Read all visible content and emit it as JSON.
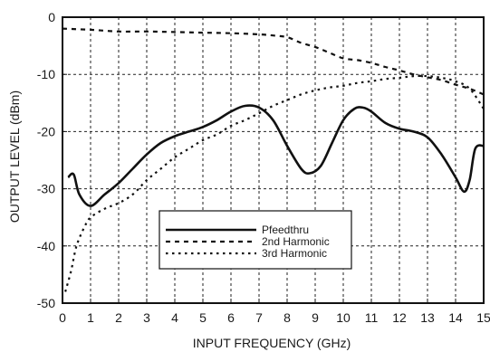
{
  "chart_data": {
    "type": "line",
    "title": "",
    "xlabel": "INPUT  FREQUENCY (GHz)",
    "ylabel": "OUTPUT LEVEL (dBm)",
    "xlim": [
      0,
      15
    ],
    "ylim": [
      -50,
      0
    ],
    "x_ticks": [
      "0",
      "1",
      "2",
      "3",
      "4",
      "5",
      "6",
      "7",
      "8",
      "9",
      "10",
      "11",
      "12",
      "13",
      "14",
      "15"
    ],
    "y_ticks": [
      "0",
      "-10",
      "-20",
      "-30",
      "-40",
      "-50"
    ],
    "grid": true,
    "legend_position": "lower-center",
    "series": [
      {
        "name": "Pfeedthru",
        "style": "solid",
        "points": [
          [
            0.2,
            -28
          ],
          [
            0.4,
            -27.5
          ],
          [
            0.6,
            -31
          ],
          [
            1.0,
            -33
          ],
          [
            1.5,
            -31
          ],
          [
            2.0,
            -29
          ],
          [
            2.5,
            -26.5
          ],
          [
            3.0,
            -24
          ],
          [
            3.5,
            -22
          ],
          [
            4.0,
            -20.8
          ],
          [
            4.5,
            -20
          ],
          [
            5.0,
            -19.2
          ],
          [
            5.5,
            -18
          ],
          [
            6.0,
            -16.5
          ],
          [
            6.5,
            -15.5
          ],
          [
            7.0,
            -15.8
          ],
          [
            7.5,
            -18
          ],
          [
            8.0,
            -22.5
          ],
          [
            8.5,
            -26.5
          ],
          [
            8.8,
            -27.3
          ],
          [
            9.2,
            -26
          ],
          [
            9.6,
            -22
          ],
          [
            10.0,
            -18
          ],
          [
            10.4,
            -16
          ],
          [
            10.7,
            -15.8
          ],
          [
            11.0,
            -16.5
          ],
          [
            11.5,
            -18.5
          ],
          [
            12.0,
            -19.5
          ],
          [
            12.5,
            -20
          ],
          [
            13.0,
            -21
          ],
          [
            13.5,
            -24
          ],
          [
            14.0,
            -28
          ],
          [
            14.3,
            -30.5
          ],
          [
            14.5,
            -28.5
          ],
          [
            14.7,
            -23
          ],
          [
            15.0,
            -22.5
          ]
        ]
      },
      {
        "name": "2nd Harmonic",
        "style": "dash",
        "points": [
          [
            0.0,
            -2
          ],
          [
            1.0,
            -2.2
          ],
          [
            2.0,
            -2.5
          ],
          [
            3.0,
            -2.5
          ],
          [
            4.0,
            -2.6
          ],
          [
            5.0,
            -2.7
          ],
          [
            6.0,
            -2.8
          ],
          [
            7.0,
            -3
          ],
          [
            7.5,
            -3.2
          ],
          [
            8.0,
            -3.5
          ],
          [
            8.5,
            -4.5
          ],
          [
            9.0,
            -5.2
          ],
          [
            9.5,
            -6.2
          ],
          [
            10.0,
            -7.2
          ],
          [
            10.5,
            -7.5
          ],
          [
            11.0,
            -8
          ],
          [
            11.5,
            -8.7
          ],
          [
            12.0,
            -9.3
          ],
          [
            12.5,
            -10
          ],
          [
            13.0,
            -10.5
          ],
          [
            13.5,
            -11
          ],
          [
            14.0,
            -11.8
          ],
          [
            14.5,
            -12.5
          ],
          [
            15.0,
            -13.5
          ]
        ]
      },
      {
        "name": "3rd Harmonic",
        "style": "dot",
        "points": [
          [
            0.1,
            -48
          ],
          [
            0.3,
            -44.5
          ],
          [
            0.5,
            -40
          ],
          [
            0.8,
            -36.5
          ],
          [
            1.0,
            -35
          ],
          [
            1.5,
            -33.5
          ],
          [
            2.0,
            -32.5
          ],
          [
            2.5,
            -31
          ],
          [
            3.0,
            -28.5
          ],
          [
            3.5,
            -26.5
          ],
          [
            4.0,
            -24.5
          ],
          [
            4.5,
            -23
          ],
          [
            5.0,
            -21.5
          ],
          [
            5.5,
            -20.5
          ],
          [
            6.0,
            -19
          ],
          [
            6.5,
            -18
          ],
          [
            7.0,
            -16.8
          ],
          [
            7.5,
            -15.5
          ],
          [
            8.0,
            -14.5
          ],
          [
            8.5,
            -13.5
          ],
          [
            9.0,
            -12.8
          ],
          [
            9.5,
            -12.3
          ],
          [
            10.0,
            -12
          ],
          [
            10.5,
            -11.5
          ],
          [
            11.0,
            -11.2
          ],
          [
            11.5,
            -10.8
          ],
          [
            12.0,
            -10.6
          ],
          [
            12.5,
            -10.3
          ],
          [
            13.0,
            -10.3
          ],
          [
            13.5,
            -10.6
          ],
          [
            14.0,
            -11.2
          ],
          [
            14.5,
            -12.5
          ],
          [
            15.0,
            -16
          ]
        ]
      }
    ]
  }
}
